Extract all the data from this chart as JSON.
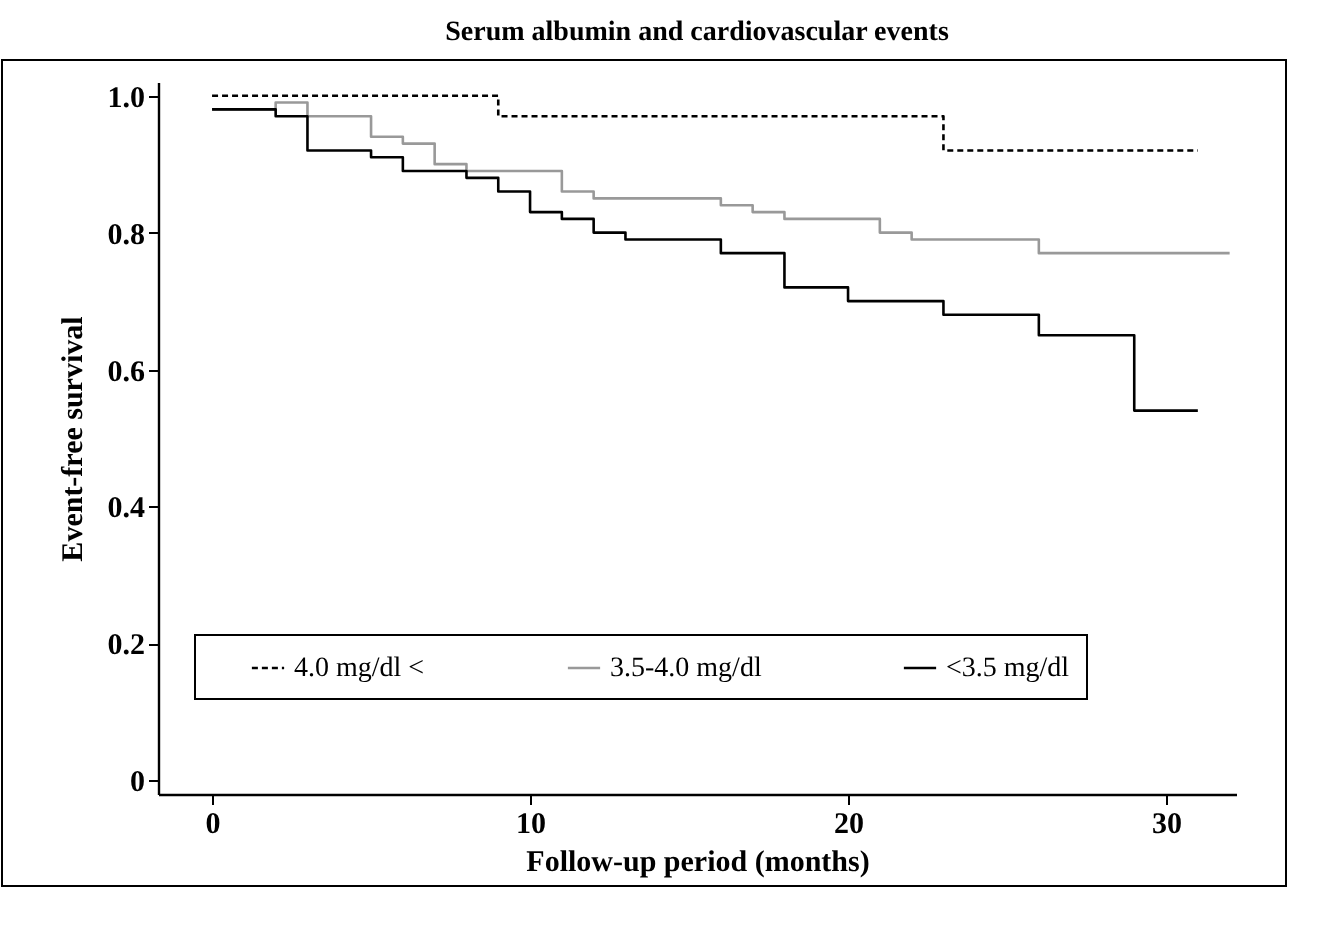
{
  "chart_data": {
    "type": "step",
    "title": "Serum albumin and cardiovascular events",
    "xlabel": "Follow-up period (months)",
    "ylabel": "Event-free survival",
    "xlim": [
      -1.7,
      32.2
    ],
    "xticks": [
      0,
      10,
      20,
      30
    ],
    "ylim": [
      -0.02,
      1.02
    ],
    "yticks": [
      0,
      0.2,
      0.4,
      0.6,
      0.8,
      {
        "value": 1,
        "label": "1.0"
      }
    ],
    "grid": false,
    "legend": "bottom",
    "marker": "none",
    "series": [
      {
        "name": "4.0 mg/dl <",
        "color": "#000000",
        "line_style": "dashed",
        "x": [
          0,
          9,
          23,
          31
        ],
        "values": [
          1.0,
          0.97,
          0.92,
          0.92
        ]
      },
      {
        "name": "3.5-4.0 mg/dl",
        "color": "#999999",
        "line_style": "solid",
        "x": [
          0,
          2,
          3,
          5,
          6,
          7,
          8,
          11,
          12,
          13,
          16,
          17,
          18,
          21,
          22,
          26,
          32
        ],
        "values": [
          0.98,
          0.99,
          0.97,
          0.94,
          0.93,
          0.9,
          0.89,
          0.86,
          0.85,
          0.85,
          0.84,
          0.83,
          0.82,
          0.8,
          0.79,
          0.77,
          0.77
        ]
      },
      {
        "name": "<3.5 mg/dl",
        "color": "#000000",
        "line_style": "solid",
        "x": [
          0,
          2,
          3,
          5,
          6,
          8,
          9,
          10,
          11,
          12,
          13,
          16,
          18,
          20,
          23,
          26,
          29,
          31
        ],
        "values": [
          0.98,
          0.97,
          0.92,
          0.91,
          0.89,
          0.88,
          0.86,
          0.83,
          0.82,
          0.8,
          0.79,
          0.77,
          0.72,
          0.7,
          0.68,
          0.65,
          0.54,
          0.54
        ]
      }
    ]
  }
}
